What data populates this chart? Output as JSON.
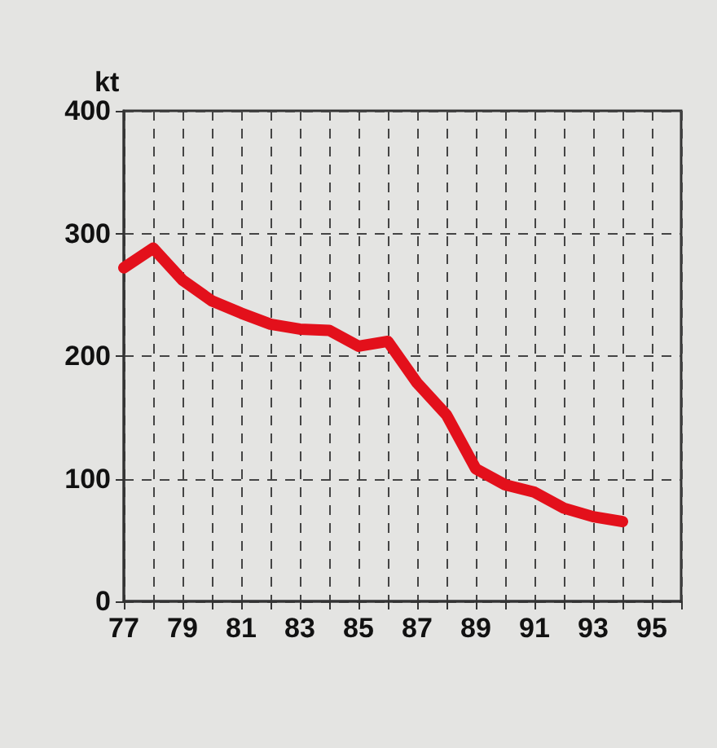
{
  "chart_data": {
    "type": "line",
    "ylabel": "kt",
    "x": [
      77,
      78,
      79,
      80,
      81,
      82,
      83,
      84,
      85,
      86,
      87,
      88,
      89,
      90,
      91,
      92,
      93,
      94
    ],
    "series": [
      {
        "color": "#e3101b",
        "values": [
          272,
          288,
          262,
          245,
          235,
          226,
          222,
          221,
          208,
          212,
          178,
          152,
          108,
          95,
          89,
          76,
          69,
          65
        ]
      }
    ],
    "xlim": [
      77,
      96
    ],
    "xticks": [
      77,
      {
        "value": 78,
        "label": null
      },
      79,
      {
        "value": 80,
        "label": null
      },
      81,
      {
        "value": 82,
        "label": null
      },
      83,
      {
        "value": 84,
        "label": null
      },
      85,
      {
        "value": 86,
        "label": null
      },
      87,
      {
        "value": 88,
        "label": null
      },
      89,
      {
        "value": 90,
        "label": null
      },
      91,
      {
        "value": 92,
        "label": null
      },
      93,
      {
        "value": 94,
        "label": null
      },
      95,
      {
        "value": 96,
        "label": null
      }
    ],
    "ylim": [
      0,
      400
    ],
    "yticks": [
      0,
      100,
      200,
      300,
      400
    ],
    "grid": true,
    "line_style": "solid"
  }
}
